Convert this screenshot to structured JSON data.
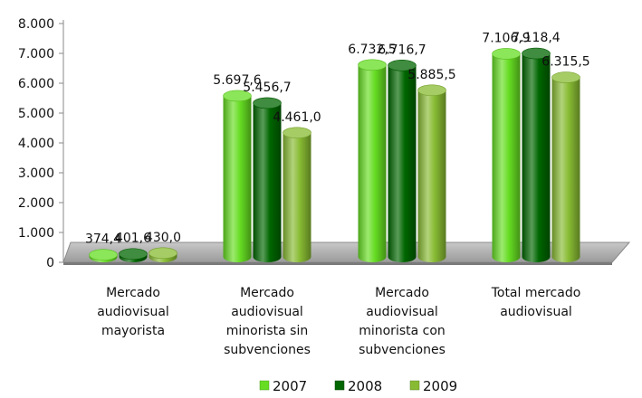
{
  "chart_data": {
    "type": "bar",
    "title": "",
    "xlabel": "",
    "ylabel": "",
    "ylim": [
      0,
      8000
    ],
    "yticks": [
      0,
      1000,
      2000,
      3000,
      4000,
      5000,
      6000,
      7000,
      8000
    ],
    "ytick_labels": [
      "0",
      "1.000",
      "2.000",
      "3.000",
      "4.000",
      "5.000",
      "6.000",
      "7.000",
      "8.000"
    ],
    "categories": [
      [
        "Mercado",
        "audiovisual",
        "mayorista"
      ],
      [
        "Mercado",
        "audiovisual",
        "minorista sin",
        "subvenciones"
      ],
      [
        "Mercado",
        "audiovisual",
        "minorista con",
        "subvenciones"
      ],
      [
        "Total mercado",
        "audiovisual"
      ]
    ],
    "series": [
      {
        "name": "2007",
        "color": "#66dd22",
        "values": [
          374.4,
          5697.6,
          6732.5,
          7106.9
        ],
        "labels": [
          "374,4",
          "5.697,6",
          "6.732,5",
          "7.106,9"
        ]
      },
      {
        "name": "2008",
        "color": "#006600",
        "values": [
          401.6,
          5456.7,
          6716.7,
          7118.4
        ],
        "labels": [
          "401,6",
          "5.456,7",
          "6.716,7",
          "7.118,4"
        ]
      },
      {
        "name": "2009",
        "color": "#88bb33",
        "values": [
          430.0,
          4461.0,
          5885.5,
          6315.5
        ],
        "labels": [
          "430,0",
          "4.461,0",
          "5.885,5",
          "6.315,5"
        ]
      }
    ],
    "legend_position": "bottom",
    "grid": false
  }
}
